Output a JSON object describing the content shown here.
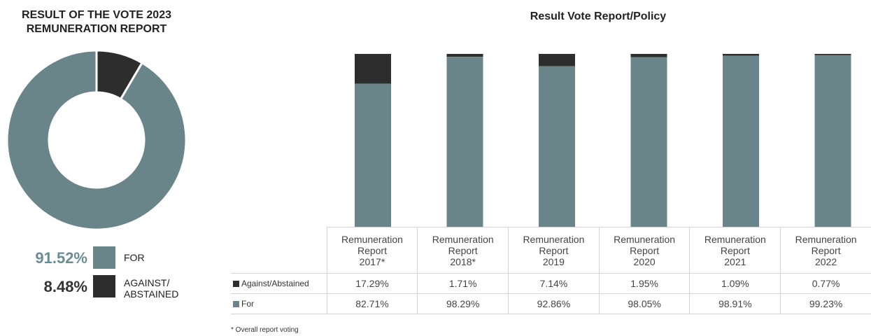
{
  "colors": {
    "for": "#6a8589",
    "against": "#2d2d2d",
    "for_text": "#6a8d94"
  },
  "chart_data": [
    {
      "type": "pie",
      "title": "RESULT OF THE VOTE 2023 REMUNERATION REPORT",
      "title_lines": [
        "RESULT OF THE VOTE 2023",
        "REMUNERATION REPORT"
      ],
      "slices": [
        {
          "label": "FOR",
          "value": 91.52,
          "display": "91.52%"
        },
        {
          "label": "AGAINST/ ABSTAINED",
          "label_lines": [
            "AGAINST/",
            "ABSTAINED"
          ],
          "value": 8.48,
          "display": "8.48%"
        }
      ]
    },
    {
      "type": "bar",
      "stacked": true,
      "title": "Result Vote Report/Policy",
      "categories": [
        [
          "Remuneration",
          "Report",
          "2017*"
        ],
        [
          "Remuneration",
          "Report",
          "2018*"
        ],
        [
          "Remuneration",
          "Report",
          "2019"
        ],
        [
          "Remuneration",
          "Report",
          "2020"
        ],
        [
          "Remuneration",
          "Report",
          "2021"
        ],
        [
          "Remuneration",
          "Report",
          "2022"
        ]
      ],
      "series": [
        {
          "name": "Against/Abstained",
          "values": [
            17.29,
            1.71,
            7.14,
            1.95,
            1.09,
            0.77
          ],
          "display": [
            "17.29%",
            "1.71%",
            "7.14%",
            "1.95%",
            "1.09%",
            "0.77%"
          ]
        },
        {
          "name": "For",
          "values": [
            82.71,
            98.29,
            92.86,
            98.05,
            98.91,
            99.23
          ],
          "display": [
            "82.71%",
            "98.29%",
            "92.86%",
            "98.05%",
            "98.91%",
            "99.23%"
          ]
        }
      ],
      "ylim": [
        0,
        100
      ],
      "grid": false,
      "legend": "table"
    }
  ],
  "footnote": "* Overall report voting"
}
